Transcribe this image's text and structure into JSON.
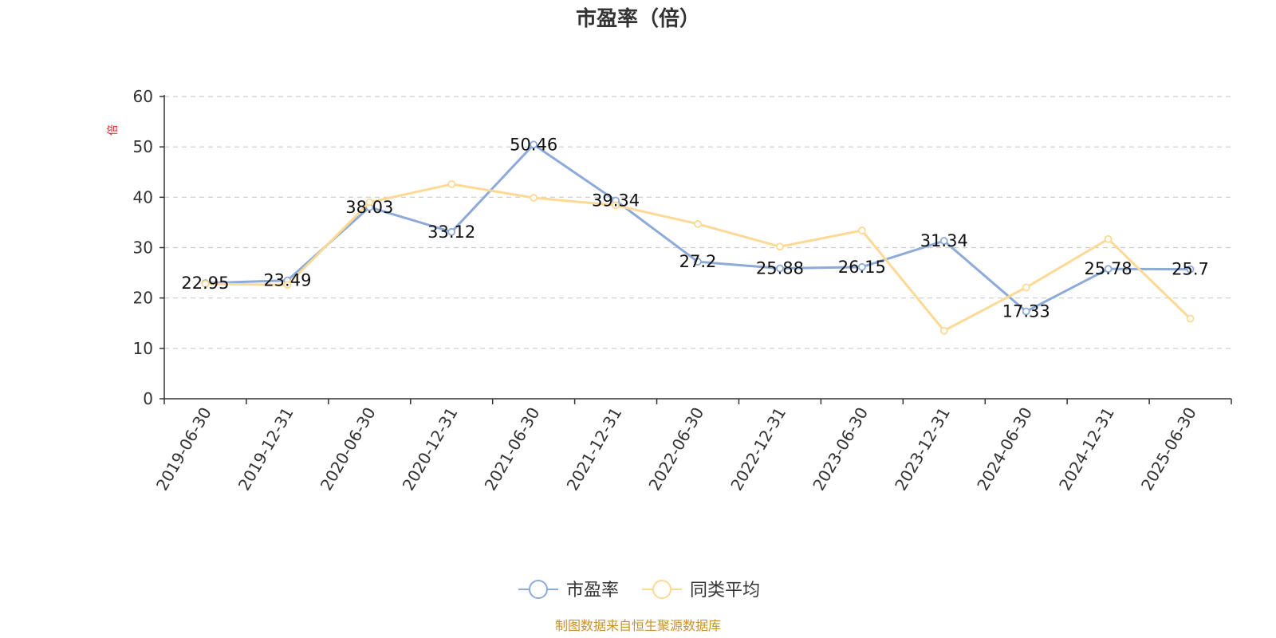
{
  "chart_data": {
    "type": "line",
    "title": "市盈率（倍）",
    "y_unit": "倍",
    "categories": [
      "2019-06-30",
      "2019-12-31",
      "2020-06-30",
      "2020-12-31",
      "2021-06-30",
      "2021-12-31",
      "2022-06-30",
      "2022-12-31",
      "2023-06-30",
      "2023-12-31",
      "2024-06-30",
      "2024-12-31",
      "2025-06-30"
    ],
    "ylim": [
      0,
      60
    ],
    "yticks": [
      0,
      10,
      20,
      30,
      40,
      50,
      60
    ],
    "grid": true,
    "legend_position": "bottom-center",
    "series": [
      {
        "name": "市盈率",
        "color": "#8eaad8",
        "values": [
          22.95,
          23.49,
          38.03,
          33.12,
          50.46,
          39.34,
          27.2,
          25.88,
          26.15,
          31.34,
          17.33,
          25.78,
          25.7
        ],
        "labels": [
          "22.95",
          "23.49",
          "38.03",
          "33.12",
          "50.46",
          "39.34",
          "27.2",
          "25.88",
          "26.15",
          "31.34",
          "17.33",
          "25.78",
          "25.7"
        ]
      },
      {
        "name": "同类平均",
        "color": "#fcd995",
        "values": [
          22.8,
          22.6,
          39.0,
          42.6,
          39.9,
          38.4,
          34.7,
          30.2,
          33.4,
          13.5,
          22.1,
          31.7,
          15.9
        ]
      }
    ],
    "source": "制图数据来自恒生聚源数据库"
  }
}
